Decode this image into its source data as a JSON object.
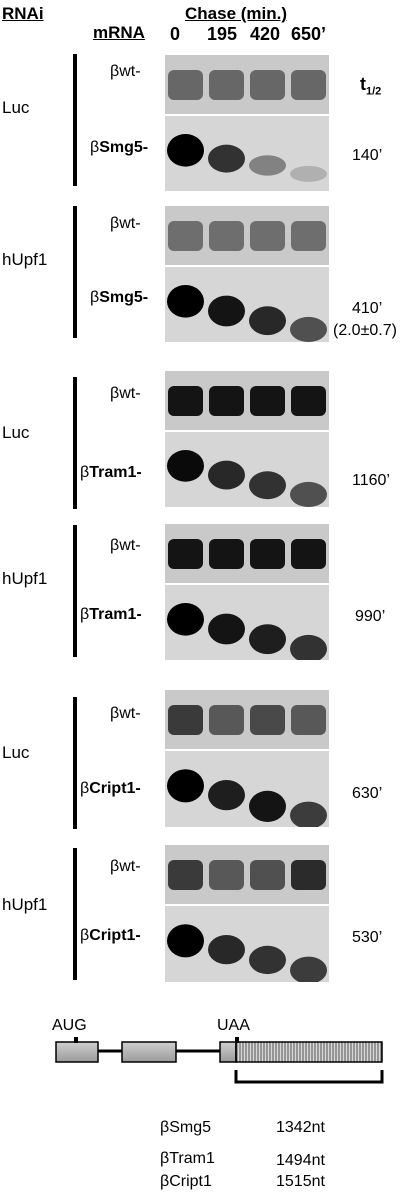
{
  "header": {
    "rnai": "RNAi",
    "mrna": "mRNA",
    "chase": "Chase (min.)",
    "timepoints": [
      "0",
      "195",
      "420",
      "650’"
    ],
    "t_half_label": "t",
    "t_half_sub": "1/2"
  },
  "groups": [
    {
      "rnai": "Luc",
      "wt_label": "βwt-",
      "target_prefix": "β",
      "target_name": "Smg5-",
      "t_half": "140’",
      "ratio": "",
      "wt_levels": [
        0.45,
        0.45,
        0.45,
        0.45
      ],
      "target_levels": [
        1.0,
        0.75,
        0.35,
        0.12
      ]
    },
    {
      "rnai": "hUpf1",
      "wt_label": "βwt-",
      "target_prefix": "β",
      "target_name": "Smg5-",
      "t_half": "410’",
      "ratio": "(2.0±0.7)",
      "wt_levels": [
        0.4,
        0.4,
        0.4,
        0.4
      ],
      "target_levels": [
        1.0,
        0.9,
        0.8,
        0.6
      ]
    },
    {
      "rnai": "Luc",
      "wt_label": "βwt-",
      "target_prefix": "β",
      "target_name": "Tram1-",
      "t_half": "1160’",
      "ratio": "",
      "wt_levels": [
        1.0,
        1.0,
        1.0,
        1.0
      ],
      "target_levels": [
        0.95,
        0.8,
        0.75,
        0.6
      ]
    },
    {
      "rnai": "hUpf1",
      "wt_label": "βwt-",
      "target_prefix": "β",
      "target_name": "Tram1-",
      "t_half": "990’",
      "ratio": "",
      "wt_levels": [
        1.0,
        1.0,
        1.0,
        1.0
      ],
      "target_levels": [
        1.0,
        0.9,
        0.85,
        0.75
      ]
    },
    {
      "rnai": "Luc",
      "wt_label": "βwt-",
      "target_prefix": "β",
      "target_name": "Cript1-",
      "t_half": "630’",
      "ratio": "",
      "wt_levels": [
        0.75,
        0.55,
        0.65,
        0.55
      ],
      "target_levels": [
        1.0,
        0.85,
        0.9,
        0.7
      ]
    },
    {
      "rnai": "hUpf1",
      "wt_label": "βwt-",
      "target_prefix": "β",
      "target_name": "Cript1-",
      "t_half": "530’",
      "ratio": "",
      "wt_levels": [
        0.75,
        0.55,
        0.6,
        0.85
      ],
      "target_levels": [
        1.0,
        0.8,
        0.75,
        0.7
      ]
    }
  ],
  "gene_diagram": {
    "aug": "AUG",
    "uaa": "UAA",
    "lengths": [
      {
        "name": "βSmg5",
        "nt": "1342nt"
      },
      {
        "name": "βTram1",
        "nt": "1494nt"
      },
      {
        "name": "βCript1",
        "nt": "1515nt"
      }
    ]
  }
}
